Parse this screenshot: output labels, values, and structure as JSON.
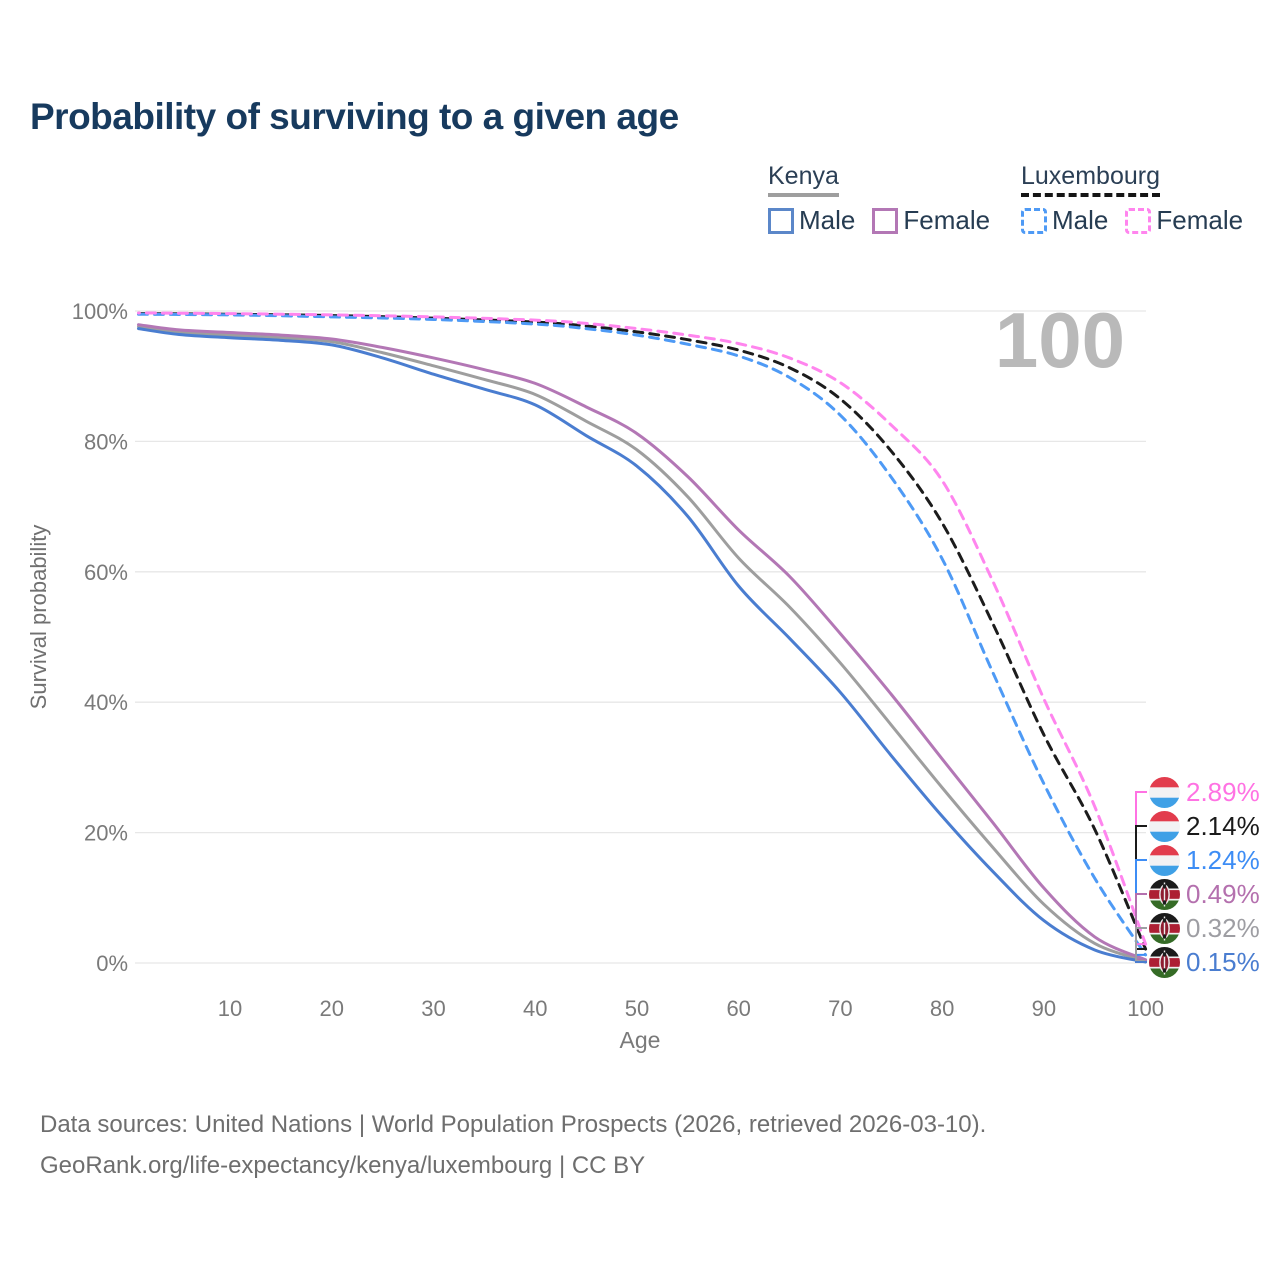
{
  "title": "Probability of surviving to a given age",
  "legend": {
    "groups": [
      {
        "name": "Kenya",
        "underline_style": "solid",
        "underline_color": "#9e9e9e",
        "items": [
          {
            "label": "Male",
            "color": "#5b87c9",
            "dashed": false
          },
          {
            "label": "Female",
            "color": "#b377b5",
            "dashed": false
          }
        ]
      },
      {
        "name": "Luxembourg",
        "underline_style": "dashed",
        "underline_color": "#151515",
        "items": [
          {
            "label": "Male",
            "color": "#4e9af5",
            "dashed": true
          },
          {
            "label": "Female",
            "color": "#ff85ee",
            "dashed": true
          }
        ]
      }
    ]
  },
  "footer": {
    "line1": "Data sources: United Nations | World Population Prospects (2026, retrieved 2026-03-10).",
    "line2": "GeoRank.org/life-expectancy/kenya/luxembourg | CC BY"
  },
  "chart_data": {
    "type": "line",
    "title": "Probability of surviving to a given age",
    "xlabel": "Age",
    "ylabel": "Survival probability",
    "xlim": [
      0,
      100
    ],
    "ylim": [
      0,
      100
    ],
    "x_ticks": [
      10,
      20,
      30,
      40,
      50,
      60,
      70,
      80,
      90,
      100
    ],
    "y_ticks": [
      {
        "value": 0,
        "label": "0%"
      },
      {
        "value": 20,
        "label": "20%"
      },
      {
        "value": 40,
        "label": "40%"
      },
      {
        "value": 60,
        "label": "60%"
      },
      {
        "value": 80,
        "label": "80%"
      },
      {
        "value": 100,
        "label": "100%"
      }
    ],
    "grid": "horizontal",
    "age_counter": "100",
    "legend_position": "top-right",
    "series": [
      {
        "key": "lux_female",
        "name": "Luxembourg Female",
        "flag": "luxembourg",
        "color": "#ff85ee",
        "label_color": "#ff72e3",
        "dashed": true,
        "end_label": "2.89%",
        "points": [
          [
            1,
            99.7
          ],
          [
            10,
            99.6
          ],
          [
            20,
            99.4
          ],
          [
            30,
            99.1
          ],
          [
            40,
            98.6
          ],
          [
            45,
            98.1
          ],
          [
            50,
            97.3
          ],
          [
            55,
            96.3
          ],
          [
            60,
            95.0
          ],
          [
            65,
            92.8
          ],
          [
            70,
            89.0
          ],
          [
            75,
            82.5
          ],
          [
            80,
            74.0
          ],
          [
            85,
            58.5
          ],
          [
            90,
            40.5
          ],
          [
            95,
            24.0
          ],
          [
            100,
            2.89
          ]
        ]
      },
      {
        "key": "lux_avg",
        "name": "Luxembourg (both sexes)",
        "flag": "luxembourg",
        "color": "#1c1c1c",
        "label_color": "#1a1a1a",
        "dashed": true,
        "end_label": "2.14%",
        "points": [
          [
            1,
            99.6
          ],
          [
            10,
            99.5
          ],
          [
            20,
            99.3
          ],
          [
            30,
            98.9
          ],
          [
            40,
            98.3
          ],
          [
            45,
            97.7
          ],
          [
            50,
            96.8
          ],
          [
            55,
            95.6
          ],
          [
            60,
            94.0
          ],
          [
            65,
            91.3
          ],
          [
            70,
            86.5
          ],
          [
            75,
            78.5
          ],
          [
            80,
            67.5
          ],
          [
            85,
            52.0
          ],
          [
            90,
            35.0
          ],
          [
            95,
            20.5
          ],
          [
            100,
            2.14
          ]
        ]
      },
      {
        "key": "lux_male",
        "name": "Luxembourg Male",
        "flag": "luxembourg",
        "color": "#4e9af5",
        "label_color": "#3d8df5",
        "dashed": true,
        "end_label": "1.24%",
        "points": [
          [
            1,
            99.5
          ],
          [
            10,
            99.4
          ],
          [
            20,
            99.1
          ],
          [
            30,
            98.7
          ],
          [
            40,
            98.0
          ],
          [
            45,
            97.3
          ],
          [
            50,
            96.3
          ],
          [
            55,
            94.9
          ],
          [
            60,
            93.1
          ],
          [
            65,
            89.8
          ],
          [
            70,
            84.0
          ],
          [
            75,
            74.5
          ],
          [
            80,
            62.0
          ],
          [
            85,
            44.5
          ],
          [
            90,
            27.5
          ],
          [
            95,
            13.0
          ],
          [
            100,
            1.24
          ]
        ]
      },
      {
        "key": "kenya_female",
        "name": "Kenya Female",
        "flag": "kenya",
        "color": "#b377b5",
        "label_color": "#b470ae",
        "dashed": false,
        "end_label": "0.49%",
        "points": [
          [
            1,
            97.9
          ],
          [
            5,
            97.1
          ],
          [
            10,
            96.7
          ],
          [
            15,
            96.3
          ],
          [
            20,
            95.7
          ],
          [
            25,
            94.4
          ],
          [
            30,
            92.8
          ],
          [
            35,
            91.0
          ],
          [
            40,
            88.9
          ],
          [
            45,
            85.3
          ],
          [
            50,
            81.2
          ],
          [
            55,
            74.6
          ],
          [
            60,
            66.4
          ],
          [
            65,
            59.3
          ],
          [
            70,
            50.5
          ],
          [
            75,
            41.2
          ],
          [
            80,
            31.3
          ],
          [
            85,
            21.5
          ],
          [
            90,
            11.5
          ],
          [
            95,
            4.0
          ],
          [
            100,
            0.49
          ]
        ]
      },
      {
        "key": "kenya_avg",
        "name": "Kenya (both sexes)",
        "flag": "kenya",
        "color": "#9e9e9e",
        "label_color": "#9e9ea3",
        "dashed": false,
        "end_label": "0.32%",
        "points": [
          [
            1,
            97.6
          ],
          [
            5,
            96.8
          ],
          [
            10,
            96.3
          ],
          [
            15,
            95.9
          ],
          [
            20,
            95.3
          ],
          [
            25,
            93.6
          ],
          [
            30,
            91.6
          ],
          [
            35,
            89.5
          ],
          [
            40,
            87.2
          ],
          [
            45,
            83.1
          ],
          [
            50,
            78.7
          ],
          [
            55,
            71.5
          ],
          [
            60,
            62.1
          ],
          [
            65,
            54.6
          ],
          [
            70,
            46.0
          ],
          [
            75,
            36.5
          ],
          [
            80,
            26.9
          ],
          [
            85,
            17.7
          ],
          [
            90,
            9.0
          ],
          [
            95,
            3.0
          ],
          [
            100,
            0.32
          ]
        ]
      },
      {
        "key": "kenya_male",
        "name": "Kenya Male",
        "flag": "kenya",
        "color": "#4a7dd0",
        "label_color": "#4a7dd0",
        "dashed": false,
        "end_label": "0.15%",
        "points": [
          [
            1,
            97.3
          ],
          [
            5,
            96.4
          ],
          [
            10,
            95.9
          ],
          [
            15,
            95.5
          ],
          [
            20,
            94.8
          ],
          [
            25,
            92.8
          ],
          [
            30,
            90.3
          ],
          [
            35,
            88.0
          ],
          [
            40,
            85.6
          ],
          [
            45,
            80.9
          ],
          [
            50,
            76.2
          ],
          [
            55,
            68.5
          ],
          [
            60,
            57.8
          ],
          [
            65,
            49.8
          ],
          [
            70,
            41.5
          ],
          [
            75,
            31.8
          ],
          [
            80,
            22.5
          ],
          [
            85,
            14.0
          ],
          [
            90,
            6.5
          ],
          [
            95,
            2.0
          ],
          [
            100,
            0.15
          ]
        ]
      }
    ]
  }
}
